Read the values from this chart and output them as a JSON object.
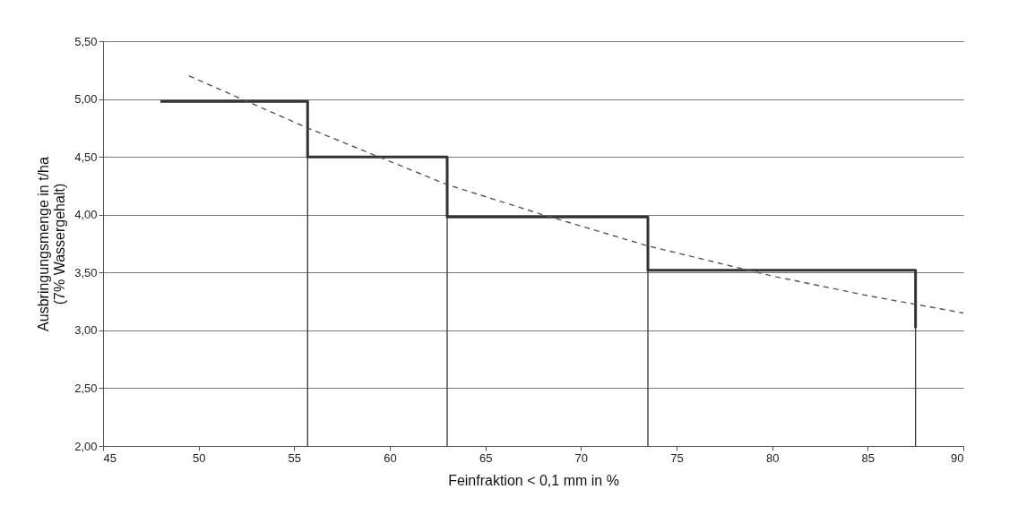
{
  "chart_data": {
    "type": "step",
    "xlabel": "Feinfraktion < 0,1 mm in %",
    "ylabel": "Ausbringungsmenge in t/ha (7% Wassergehalt)",
    "xlim": [
      45,
      90
    ],
    "xticks": [
      45,
      50,
      55,
      60,
      65,
      70,
      75,
      80,
      85,
      90
    ],
    "ylim": [
      2,
      5.5
    ],
    "yticks": [
      {
        "value": 2,
        "label": "2,00"
      },
      {
        "value": 2.5,
        "label": "2,50"
      },
      {
        "value": 3,
        "label": "3,00"
      },
      {
        "value": 3.5,
        "label": "3,50"
      },
      {
        "value": 4,
        "label": "4,00"
      },
      {
        "value": 4.5,
        "label": "4,50"
      },
      {
        "value": 5,
        "label": "5,00"
      },
      {
        "value": 5.5,
        "label": "5,50"
      }
    ],
    "grid": "y",
    "series": [
      {
        "color": "#333333",
        "x": [
          48,
          55.7,
          63,
          73.5,
          87.5
        ],
        "values": [
          4.98,
          4.5,
          3.98,
          3.52,
          3.02
        ]
      },
      {
        "type": "line",
        "color": "#555555",
        "line_style": "dashed",
        "x": [
          49.5,
          55.7,
          63,
          68,
          73.5,
          80,
          85,
          90
        ],
        "values": [
          5.2,
          4.75,
          4.26,
          4.0,
          3.73,
          3.47,
          3.3,
          3.15
        ]
      }
    ],
    "ref_lines": [
      {
        "axis": "x",
        "value": 55.7,
        "color": "#333333"
      },
      {
        "axis": "x",
        "value": 63,
        "color": "#333333"
      },
      {
        "axis": "x",
        "value": 73.5,
        "color": "#333333"
      },
      {
        "axis": "x",
        "value": 87.5,
        "color": "#333333"
      }
    ]
  }
}
